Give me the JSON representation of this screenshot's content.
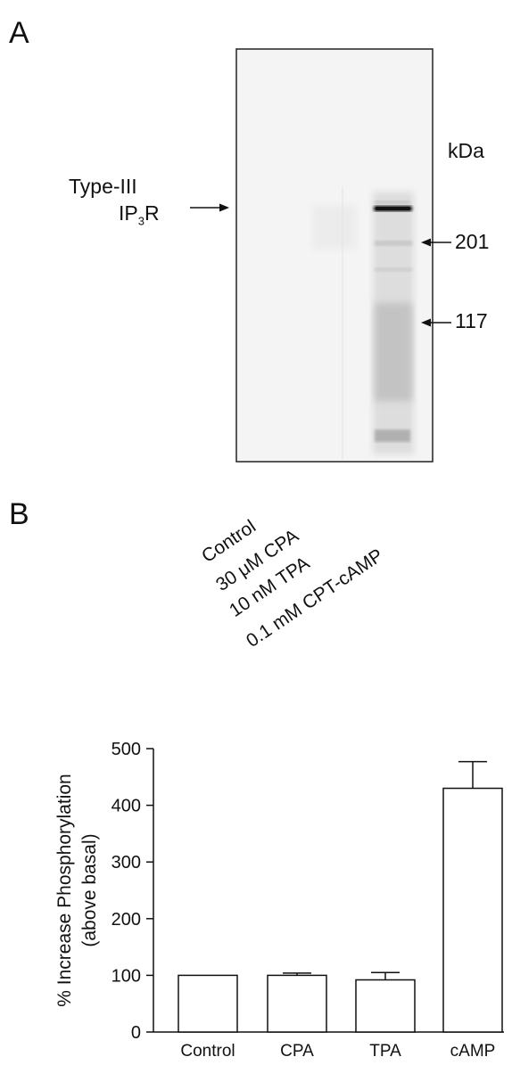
{
  "panels": {
    "a": "A",
    "b": "B"
  },
  "blot": {
    "kda_label": "kDa",
    "target_label_line1": "Type-III",
    "target_label_line2_main": "IP",
    "target_label_line2_sub": "3",
    "target_label_line2_tail": "R",
    "markers": [
      {
        "label": "201"
      },
      {
        "label": "117"
      }
    ],
    "lanes": [
      "Control",
      "30 μM CPA",
      "10 nM TPA",
      "0.1 mM CPT-cAMP"
    ],
    "colors": {
      "membrane": "#f4f4f4",
      "band": "#111111"
    }
  },
  "chart_data": {
    "type": "bar",
    "categories": [
      "Control",
      "CPA",
      "TPA",
      "cAMP"
    ],
    "values": [
      100,
      100,
      92,
      430
    ],
    "errors": [
      0,
      4,
      13,
      47
    ],
    "ylabel_line1": "% Increase Phosphorylation",
    "ylabel_line2": "(above basal)",
    "xlabel": "",
    "ylim": [
      0,
      500
    ],
    "yticks": [
      0,
      100,
      200,
      300,
      400,
      500
    ],
    "grid": false,
    "colors": {
      "bar_fill": "#ffffff",
      "bar_edge": "#111111"
    }
  }
}
